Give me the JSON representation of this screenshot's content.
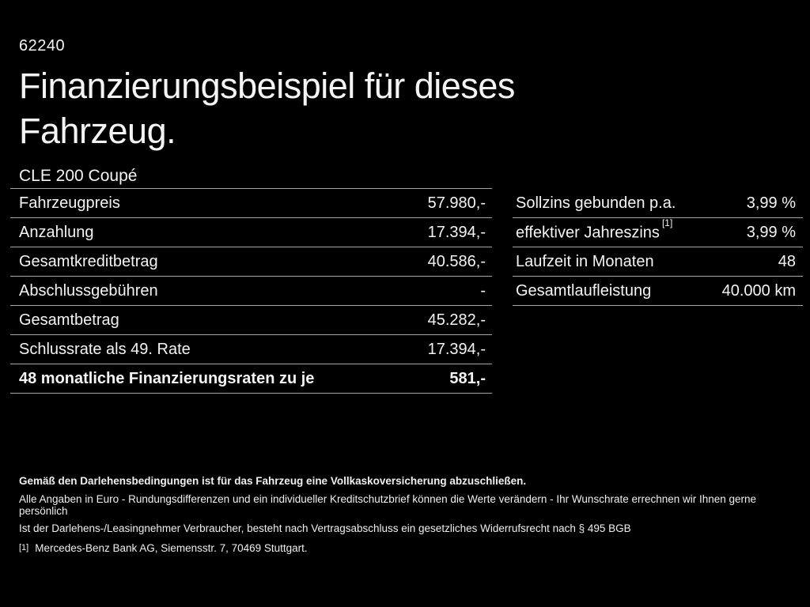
{
  "colors": {
    "background": "#000000",
    "text": "#f4f4f4",
    "divider": "#a6a6a6"
  },
  "header": {
    "code": "62240",
    "title": "Finanzierungsbeispiel für dieses Fahrzeug.",
    "vehicle_model": "CLE 200 Coupé"
  },
  "finance_table": {
    "rows": [
      {
        "label": "Fahrzeugpreis",
        "value": "57.980,-"
      },
      {
        "label": "Anzahlung",
        "value": "17.394,-"
      },
      {
        "label": "Gesamtkreditbetrag",
        "value": "40.586,-"
      },
      {
        "label": "Abschlussgebühren",
        "value": "-"
      },
      {
        "label": "Gesamtbetrag",
        "value": "45.282,-"
      },
      {
        "label": "Schlussrate als 49. Rate",
        "value": "17.394,-"
      },
      {
        "label": "48 monatliche Finanzierungsraten zu je",
        "value": "581,-",
        "emphasis": true
      }
    ]
  },
  "terms_table": {
    "rows": [
      {
        "label": "Sollzins gebunden p.a.",
        "value": "3,99 %"
      },
      {
        "label": "effektiver Jahreszins",
        "footnote_marker": "[1]",
        "value": "3,99 %"
      },
      {
        "label": "Laufzeit in Monaten",
        "value": "48"
      },
      {
        "label": "Gesamtlaufleistung",
        "value": "40.000 km"
      }
    ]
  },
  "footer": {
    "insurance_note": "Gemäß den Darlehensbedingungen ist für das Fahrzeug eine Vollkaskoversicherung abzuschließen.",
    "disclaimer_line1": "Alle Angaben in Euro - Rundungsdifferenzen und ein individueller Kreditschutzbrief können die Werte verändern - Ihr Wunschrate errechnen wir Ihnen gerne persönlich",
    "disclaimer_line2": "Ist der Darlehens-/Leasingnehmer Verbraucher, besteht nach Vertragsabschluss ein gesetzliches Widerrufsrecht nach § 495 BGB",
    "footnote_marker": "[1]",
    "footnote_text": "Mercedes-Benz Bank AG, Siemensstr. 7, 70469 Stuttgart."
  }
}
